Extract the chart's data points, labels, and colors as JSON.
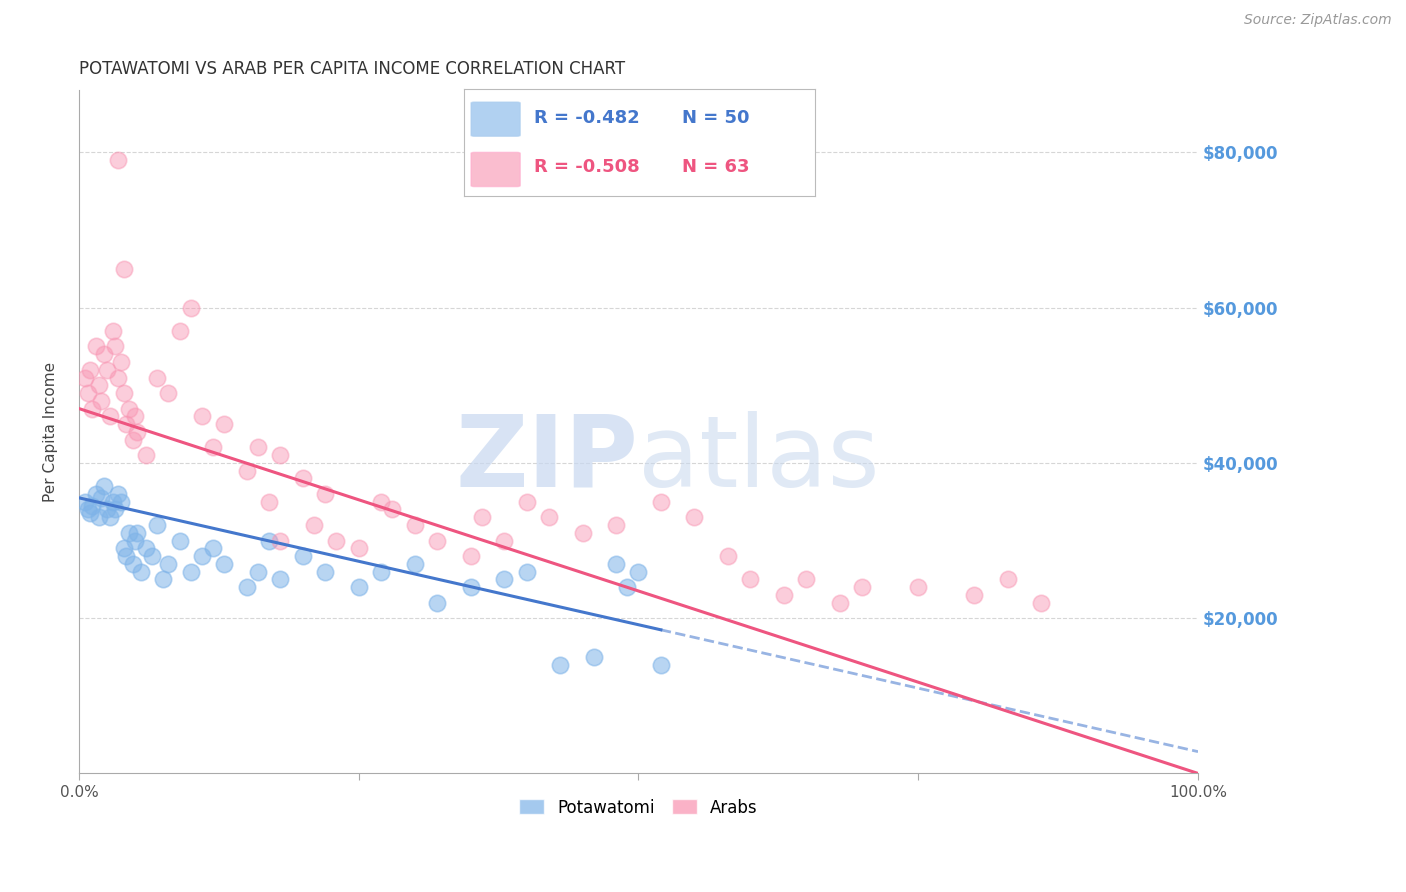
{
  "title": "POTAWATOMI VS ARAB PER CAPITA INCOME CORRELATION CHART",
  "source": "Source: ZipAtlas.com",
  "ylabel": "Per Capita Income",
  "yaxis_labels": [
    "$20,000",
    "$40,000",
    "$60,000",
    "$80,000"
  ],
  "yaxis_values": [
    20000,
    40000,
    60000,
    80000
  ],
  "xlim": [
    0,
    1.0
  ],
  "ylim": [
    0,
    88000
  ],
  "blue_color": "#7EB3E8",
  "pink_color": "#F892B0",
  "blue_line_color": "#4477CC",
  "pink_line_color": "#EE5580",
  "yaxis_label_color": "#5599DD",
  "background_color": "#FFFFFF",
  "grid_color": "#CCCCCC",
  "legend_r_blue": "R = -0.482",
  "legend_n_blue": "N = 50",
  "legend_r_pink": "R = -0.508",
  "legend_n_pink": "N = 63",
  "legend_label_blue": "Potawatomi",
  "legend_label_pink": "Arabs",
  "watermark_zip": "ZIP",
  "watermark_atlas": "atlas",
  "title_fontsize": 12,
  "source_fontsize": 10,
  "ylabel_fontsize": 11,
  "ytick_fontsize": 12,
  "xtick_fontsize": 11,
  "blue_scatter_x": [
    0.005,
    0.008,
    0.01,
    0.012,
    0.015,
    0.018,
    0.02,
    0.022,
    0.025,
    0.028,
    0.03,
    0.032,
    0.035,
    0.038,
    0.04,
    0.042,
    0.045,
    0.048,
    0.05,
    0.052,
    0.055,
    0.06,
    0.065,
    0.07,
    0.075,
    0.08,
    0.09,
    0.1,
    0.11,
    0.12,
    0.13,
    0.15,
    0.16,
    0.17,
    0.18,
    0.2,
    0.22,
    0.25,
    0.27,
    0.3,
    0.32,
    0.35,
    0.38,
    0.4,
    0.43,
    0.46,
    0.48,
    0.49,
    0.5,
    0.52
  ],
  "blue_scatter_y": [
    35000,
    34000,
    33500,
    34500,
    36000,
    33000,
    35500,
    37000,
    34000,
    33000,
    35000,
    34000,
    36000,
    35000,
    29000,
    28000,
    31000,
    27000,
    30000,
    31000,
    26000,
    29000,
    28000,
    32000,
    25000,
    27000,
    30000,
    26000,
    28000,
    29000,
    27000,
    24000,
    26000,
    30000,
    25000,
    28000,
    26000,
    24000,
    26000,
    27000,
    22000,
    24000,
    25000,
    26000,
    14000,
    15000,
    27000,
    24000,
    26000,
    14000
  ],
  "pink_scatter_x": [
    0.005,
    0.008,
    0.01,
    0.012,
    0.015,
    0.018,
    0.02,
    0.022,
    0.025,
    0.028,
    0.03,
    0.032,
    0.035,
    0.038,
    0.04,
    0.042,
    0.045,
    0.048,
    0.05,
    0.052,
    0.06,
    0.07,
    0.08,
    0.09,
    0.1,
    0.11,
    0.12,
    0.13,
    0.15,
    0.16,
    0.17,
    0.18,
    0.2,
    0.21,
    0.22,
    0.23,
    0.25,
    0.27,
    0.28,
    0.3,
    0.32,
    0.35,
    0.36,
    0.38,
    0.4,
    0.42,
    0.45,
    0.48,
    0.52,
    0.55,
    0.58,
    0.6,
    0.63,
    0.65,
    0.68,
    0.7,
    0.75,
    0.8,
    0.83,
    0.86,
    0.035,
    0.04,
    0.18
  ],
  "pink_scatter_y": [
    51000,
    49000,
    52000,
    47000,
    55000,
    50000,
    48000,
    54000,
    52000,
    46000,
    57000,
    55000,
    51000,
    53000,
    49000,
    45000,
    47000,
    43000,
    46000,
    44000,
    41000,
    51000,
    49000,
    57000,
    60000,
    46000,
    42000,
    45000,
    39000,
    42000,
    35000,
    41000,
    38000,
    32000,
    36000,
    30000,
    29000,
    35000,
    34000,
    32000,
    30000,
    28000,
    33000,
    30000,
    35000,
    33000,
    31000,
    32000,
    35000,
    33000,
    28000,
    25000,
    23000,
    25000,
    22000,
    24000,
    24000,
    23000,
    25000,
    22000,
    79000,
    65000,
    30000
  ],
  "blue_line_x0": 0.0,
  "blue_line_y0": 35500,
  "blue_line_x1": 0.52,
  "blue_line_y1": 18500,
  "blue_dash_x0": 0.52,
  "blue_dash_x1": 1.0,
  "pink_line_x0": 0.0,
  "pink_line_y0": 47000,
  "pink_line_x1": 1.0,
  "pink_line_y1": 0
}
